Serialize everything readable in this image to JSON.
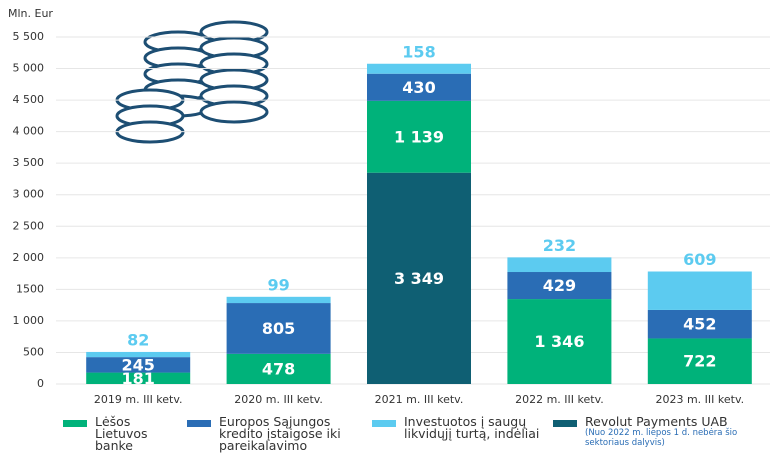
{
  "chart_data": {
    "type": "bar",
    "stacked": true,
    "ylabel": "Mln. Eur",
    "categories": [
      "2019 m. III ketv.",
      "2020 m. III ketv.",
      "2021 m. III ketv.",
      "2022 m. III ketv.",
      "2023 m. III ketv."
    ],
    "series": [
      {
        "name": "Revolut Payments UAB",
        "note": "(Nuo 2022 m. liepos 1 d. nebėra šio sektoriaus dalyvis)",
        "color": "#0f5f73",
        "values": [
          null,
          null,
          3349,
          null,
          null
        ],
        "value_labels": [
          null,
          null,
          "3 349",
          null,
          null
        ]
      },
      {
        "name": "Lėšos Lietuvos banke",
        "color": "#00b27a",
        "values": [
          181,
          478,
          1139,
          1346,
          722
        ],
        "value_labels": [
          "181",
          "478",
          "1 139",
          "1 346",
          "722"
        ]
      },
      {
        "name": "Europos Sąjungos kredito įstaigose iki pareikalavimo",
        "color": "#2a6db5",
        "values": [
          245,
          805,
          430,
          429,
          452
        ]
      },
      {
        "name": "Investuotos į saugų likvidųjį turtą, indėliai",
        "color": "#5ccbf0",
        "values": [
          82,
          99,
          158,
          232,
          609
        ]
      }
    ],
    "ylim": [
      0,
      5500
    ],
    "yticks": [
      0,
      500,
      {
        "value": 1000,
        "label": "1 000"
      },
      {
        "value": 1500,
        "label": "1500"
      },
      {
        "value": 2000,
        "label": "2 000"
      },
      {
        "value": 2500,
        "label": "2 500"
      },
      {
        "value": 3000,
        "label": "3 000"
      },
      {
        "value": 3500,
        "label": "3 500"
      },
      {
        "value": 4000,
        "label": "4 000"
      },
      {
        "value": 4500,
        "label": "4 500"
      },
      {
        "value": 5000,
        "label": "5 000"
      },
      {
        "value": 5500,
        "label": "5 500"
      }
    ],
    "grid": true
  }
}
